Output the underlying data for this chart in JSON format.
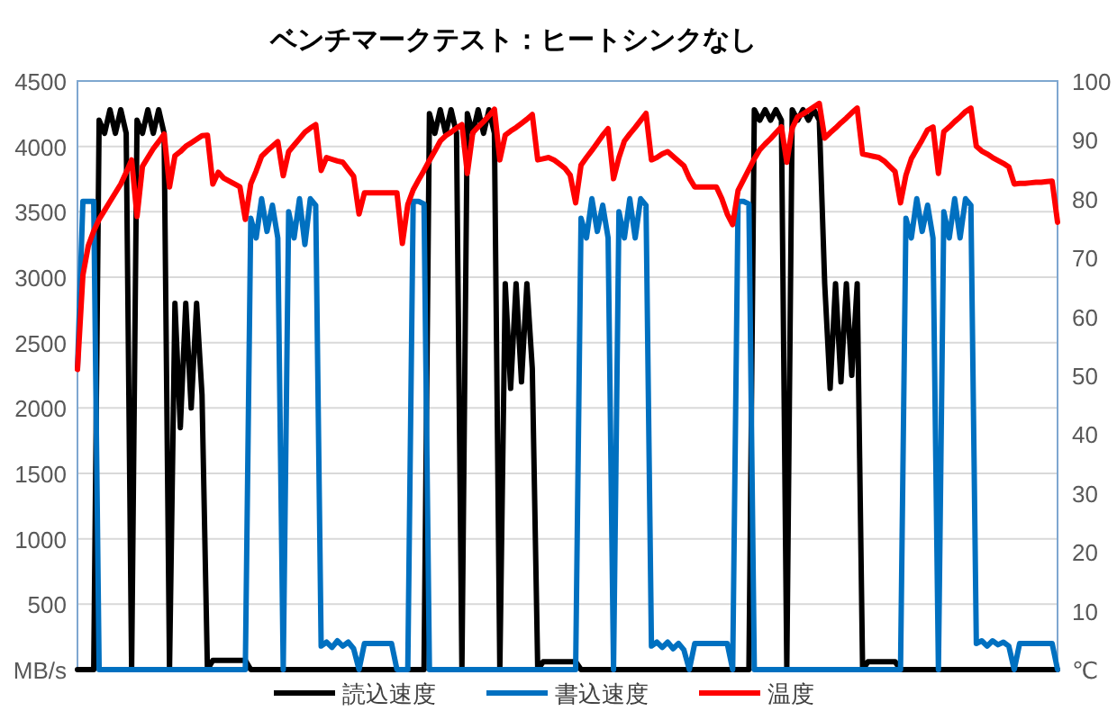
{
  "chart_data": {
    "type": "line",
    "title": "ベンチマークテスト：ヒートシンクなし",
    "categories": [
      null,
      null,
      null,
      null,
      null,
      null,
      null,
      null,
      null,
      null,
      null,
      null,
      null,
      null,
      null,
      null,
      null,
      null,
      null,
      null,
      null,
      null,
      null,
      null,
      null,
      null,
      null,
      null,
      null,
      null,
      null,
      null,
      null,
      null,
      null,
      null,
      null,
      null,
      null,
      null,
      null,
      null,
      null,
      null,
      null,
      null,
      null,
      null,
      null,
      null,
      null,
      null,
      null,
      null,
      null,
      null,
      null,
      null,
      null,
      null,
      null,
      null,
      null,
      null,
      null,
      null,
      null,
      null,
      null,
      null,
      null,
      null,
      null,
      null,
      null,
      null,
      null,
      null,
      null,
      null,
      null,
      null,
      null,
      null,
      null,
      null,
      null,
      null,
      null,
      null,
      null,
      null,
      null,
      null,
      null,
      null,
      null,
      null,
      null,
      null,
      null,
      null,
      null,
      null,
      null,
      null,
      null,
      null,
      null,
      null,
      null,
      null,
      null,
      null,
      null,
      null,
      null,
      null,
      null,
      null,
      null,
      null,
      null,
      null,
      null,
      null,
      null,
      null,
      null,
      null,
      null,
      null,
      null,
      null,
      null,
      null,
      null,
      null,
      null,
      null,
      null,
      null,
      null,
      null,
      null,
      null,
      null,
      null,
      null,
      null,
      null,
      null,
      null,
      null,
      null,
      null,
      null,
      null,
      null,
      null,
      null,
      null,
      null,
      null,
      null,
      null,
      null,
      null,
      null,
      null,
      null,
      null,
      null,
      null,
      null,
      null,
      null,
      null,
      null,
      null,
      null,
      null
    ],
    "tick_labels": "y",
    "ylim": [
      0,
      4500
    ],
    "yticks": [
      {
        "value": 0,
        "label": "MB/s"
      },
      500,
      1000,
      1500,
      2000,
      2500,
      3000,
      3500,
      4000,
      4500
    ],
    "y2lim": [
      0,
      100
    ],
    "y2ticks": [
      {
        "value": 0,
        "label": "℃"
      },
      10,
      20,
      30,
      40,
      50,
      60,
      70,
      80,
      90,
      100
    ],
    "grid": "y",
    "legend": "bottom",
    "marker": "none",
    "line_style": "solid",
    "series": [
      {
        "name": "読込速度",
        "color": "#000000",
        "values": [
          0,
          0,
          0,
          0,
          4200,
          4100,
          4280,
          4100,
          4280,
          4100,
          0,
          4200,
          4100,
          4280,
          4100,
          4280,
          4100,
          0,
          2800,
          1850,
          2800,
          2000,
          2800,
          2100,
          0,
          70,
          70,
          70,
          70,
          70,
          70,
          70,
          0,
          0,
          0,
          0,
          0,
          0,
          0,
          0,
          0,
          0,
          0,
          0,
          0,
          0,
          0,
          0,
          0,
          0,
          0,
          0,
          0,
          0,
          0,
          0,
          0,
          0,
          0,
          0,
          0,
          0,
          0,
          0,
          0,
          4250,
          4100,
          4280,
          4100,
          4280,
          4100,
          0,
          4250,
          4100,
          4280,
          4100,
          4280,
          4100,
          0,
          2950,
          2150,
          2950,
          2200,
          2950,
          2300,
          0,
          60,
          60,
          60,
          60,
          60,
          60,
          60,
          0,
          0,
          0,
          0,
          0,
          0,
          0,
          0,
          0,
          0,
          0,
          0,
          0,
          0,
          0,
          0,
          0,
          0,
          0,
          0,
          0,
          0,
          0,
          0,
          0,
          0,
          0,
          0,
          0,
          0,
          0,
          0,
          4280,
          4200,
          4280,
          4200,
          4280,
          4200,
          0,
          4280,
          4200,
          4280,
          4200,
          4280,
          4200,
          2950,
          2150,
          2950,
          2200,
          2950,
          2250,
          2950,
          0,
          60,
          60,
          60,
          60,
          60,
          60,
          0,
          0,
          0,
          0,
          0,
          0,
          0,
          0,
          0,
          0,
          0,
          0,
          0,
          0,
          0,
          0,
          0,
          0,
          0,
          0,
          0,
          0,
          0,
          0,
          0,
          0,
          0,
          0,
          0,
          0
        ]
      },
      {
        "name": "書込速度",
        "color": "#0070c0",
        "values": [
          2300,
          3580,
          3580,
          3580,
          0,
          0,
          0,
          0,
          0,
          0,
          0,
          0,
          0,
          0,
          0,
          0,
          0,
          0,
          0,
          0,
          0,
          0,
          0,
          0,
          0,
          0,
          0,
          0,
          0,
          0,
          0,
          0,
          3450,
          3300,
          3600,
          3350,
          3550,
          3300,
          0,
          3500,
          3300,
          3600,
          3250,
          3600,
          3550,
          180,
          210,
          170,
          220,
          180,
          210,
          160,
          0,
          200,
          200,
          200,
          200,
          200,
          200,
          0,
          0,
          0,
          3580,
          3580,
          3560,
          0,
          0,
          0,
          0,
          0,
          0,
          0,
          0,
          0,
          0,
          0,
          0,
          0,
          0,
          0,
          0,
          0,
          0,
          0,
          0,
          0,
          0,
          0,
          0,
          0,
          0,
          0,
          0,
          3450,
          3300,
          3600,
          3350,
          3550,
          3300,
          0,
          3500,
          3300,
          3600,
          3300,
          3600,
          3550,
          180,
          210,
          170,
          210,
          160,
          200,
          150,
          0,
          200,
          200,
          200,
          200,
          200,
          200,
          200,
          0,
          3580,
          3580,
          3560,
          0,
          0,
          0,
          0,
          0,
          0,
          0,
          0,
          0,
          0,
          0,
          0,
          0,
          0,
          0,
          0,
          0,
          0,
          0,
          0,
          0,
          0,
          0,
          0,
          0,
          0,
          0,
          0,
          3450,
          3300,
          3600,
          3350,
          3550,
          3300,
          0,
          3500,
          3300,
          3600,
          3300,
          3600,
          3550,
          200,
          220,
          180,
          220,
          190,
          210,
          180,
          0,
          200,
          200,
          200,
          200,
          200,
          200,
          200,
          0
        ]
      },
      {
        "name": "温度",
        "color": "#ff0000",
        "axis": "y2",
        "values": [
          51,
          67,
          72,
          74.5,
          76.5,
          78,
          79.5,
          81,
          82.5,
          84.5,
          86.6,
          77,
          85.5,
          87,
          88.5,
          89.7,
          91,
          82,
          87.3,
          88,
          88.9,
          89.5,
          90.1,
          90.7,
          90.8,
          82.5,
          84.5,
          83.5,
          83,
          82.5,
          82,
          76.5,
          82.5,
          84.7,
          87.2,
          88.1,
          88.9,
          89.7,
          83.9,
          88,
          89.1,
          90.2,
          91.3,
          92,
          92.6,
          84.8,
          87,
          86.7,
          86.4,
          86.2,
          85,
          83.8,
          77.4,
          81,
          81,
          81,
          81,
          81,
          81,
          81,
          72.4,
          79,
          81.5,
          83.2,
          84.8,
          86.5,
          88.1,
          89.8,
          90.7,
          91.3,
          92,
          92.6,
          84.3,
          91.2,
          92.2,
          93.1,
          94.1,
          95.2,
          86.6,
          90.8,
          91.5,
          92.1,
          92.8,
          93.5,
          94.3,
          86.6,
          86.8,
          87,
          86.6,
          85.9,
          85.2,
          84,
          79.3,
          85.7,
          87,
          88.2,
          89.5,
          90.8,
          91.9,
          83.4,
          87,
          89.8,
          91,
          92.1,
          93.3,
          94.5,
          86.6,
          87,
          87.6,
          88,
          87.2,
          86.4,
          85.6,
          83.5,
          82,
          82,
          82,
          82,
          82,
          80,
          77.4,
          75.6,
          81.4,
          83.2,
          85,
          86.8,
          88.3,
          89.3,
          90.2,
          91.2,
          92.2,
          86.2,
          92,
          93.9,
          94.4,
          95,
          95.6,
          96.2,
          90.3,
          91.2,
          92,
          92.9,
          93.7,
          94.6,
          95.4,
          87.6,
          87.4,
          87.2,
          87,
          86.4,
          85.5,
          84.6,
          79.3,
          84,
          86.8,
          88.4,
          90,
          91.7,
          92.2,
          84.3,
          91.4,
          92.2,
          93.1,
          93.9,
          94.8,
          95.4,
          88.9,
          88.1,
          87.6,
          87,
          86.5,
          86,
          85.4,
          82.5,
          82.6,
          82.6,
          82.7,
          82.8,
          82.8,
          82.9,
          83,
          76
        ]
      }
    ]
  }
}
